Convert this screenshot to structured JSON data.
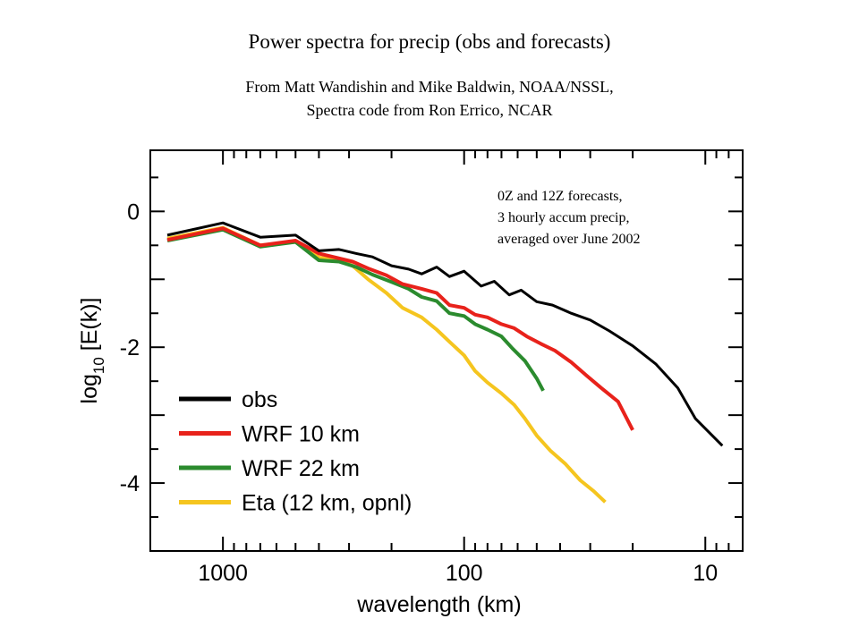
{
  "title": "Power spectra for precip (obs and forecasts)",
  "subtitle_lines": [
    "From Matt Wandishin and Mike Baldwin, NOAA/NSSL,",
    "Spectra code from Ron Errico, NCAR"
  ],
  "chart_data": {
    "type": "line",
    "xlabel": "wavelength (km)",
    "ylabel_main": "log",
    "ylabel_sub": "10",
    "ylabel_rest": " [E(k)]",
    "x_scale": "log",
    "x_reversed": true,
    "xlim": [
      2000,
      7
    ],
    "ylim": [
      -5,
      0.9
    ],
    "x_ticks": [
      1000,
      100,
      10
    ],
    "x_tick_labels": [
      "1000",
      "100",
      "10"
    ],
    "y_ticks": [
      0,
      -2,
      -4
    ],
    "y_tick_labels": [
      "0",
      "-2",
      "-4"
    ],
    "grid": false,
    "legend_position": "bottom-left",
    "annotation_lines": [
      "0Z and 12Z forecasts,",
      "3 hourly accum precip,",
      "averaged over June 2002"
    ],
    "series": [
      {
        "name": "obs",
        "color": "#000000",
        "points": [
          [
            1700,
            -0.35
          ],
          [
            1000,
            -0.17
          ],
          [
            700,
            -0.38
          ],
          [
            500,
            -0.35
          ],
          [
            400,
            -0.58
          ],
          [
            330,
            -0.56
          ],
          [
            280,
            -0.62
          ],
          [
            240,
            -0.67
          ],
          [
            200,
            -0.8
          ],
          [
            170,
            -0.85
          ],
          [
            150,
            -0.92
          ],
          [
            130,
            -0.82
          ],
          [
            115,
            -0.96
          ],
          [
            100,
            -0.88
          ],
          [
            85,
            -1.1
          ],
          [
            75,
            -1.03
          ],
          [
            65,
            -1.23
          ],
          [
            58,
            -1.16
          ],
          [
            50,
            -1.33
          ],
          [
            43,
            -1.38
          ],
          [
            36,
            -1.5
          ],
          [
            30,
            -1.6
          ],
          [
            25,
            -1.76
          ],
          [
            20,
            -1.98
          ],
          [
            16,
            -2.25
          ],
          [
            13,
            -2.6
          ],
          [
            11,
            -3.05
          ],
          [
            8.5,
            -3.45
          ]
        ]
      },
      {
        "name": "WRF 10 km",
        "color": "#e8221b",
        "points": [
          [
            1700,
            -0.42
          ],
          [
            1000,
            -0.25
          ],
          [
            700,
            -0.5
          ],
          [
            500,
            -0.43
          ],
          [
            400,
            -0.62
          ],
          [
            340,
            -0.68
          ],
          [
            290,
            -0.74
          ],
          [
            250,
            -0.84
          ],
          [
            210,
            -0.94
          ],
          [
            180,
            -1.07
          ],
          [
            150,
            -1.14
          ],
          [
            130,
            -1.2
          ],
          [
            115,
            -1.38
          ],
          [
            100,
            -1.42
          ],
          [
            90,
            -1.52
          ],
          [
            80,
            -1.56
          ],
          [
            70,
            -1.66
          ],
          [
            62,
            -1.72
          ],
          [
            55,
            -1.84
          ],
          [
            48,
            -1.95
          ],
          [
            42,
            -2.05
          ],
          [
            36,
            -2.22
          ],
          [
            31,
            -2.42
          ],
          [
            27,
            -2.6
          ],
          [
            23,
            -2.8
          ],
          [
            20,
            -3.22
          ]
        ]
      },
      {
        "name": "WRF 22 km",
        "color": "#2b8b2e",
        "points": [
          [
            1700,
            -0.43
          ],
          [
            1000,
            -0.27
          ],
          [
            700,
            -0.52
          ],
          [
            500,
            -0.45
          ],
          [
            400,
            -0.72
          ],
          [
            330,
            -0.74
          ],
          [
            280,
            -0.82
          ],
          [
            240,
            -0.93
          ],
          [
            200,
            -1.04
          ],
          [
            170,
            -1.14
          ],
          [
            150,
            -1.26
          ],
          [
            130,
            -1.32
          ],
          [
            115,
            -1.5
          ],
          [
            100,
            -1.54
          ],
          [
            90,
            -1.66
          ],
          [
            80,
            -1.74
          ],
          [
            70,
            -1.84
          ],
          [
            63,
            -2.02
          ],
          [
            56,
            -2.2
          ],
          [
            50,
            -2.46
          ],
          [
            47,
            -2.64
          ]
        ]
      },
      {
        "name": "Eta (12 km, opnl)",
        "color": "#f5c51f",
        "points": [
          [
            1700,
            -0.4
          ],
          [
            1000,
            -0.24
          ],
          [
            700,
            -0.5
          ],
          [
            500,
            -0.45
          ],
          [
            400,
            -0.68
          ],
          [
            330,
            -0.72
          ],
          [
            290,
            -0.8
          ],
          [
            250,
            -1.0
          ],
          [
            210,
            -1.2
          ],
          [
            180,
            -1.42
          ],
          [
            150,
            -1.56
          ],
          [
            130,
            -1.74
          ],
          [
            115,
            -1.92
          ],
          [
            100,
            -2.12
          ],
          [
            90,
            -2.35
          ],
          [
            80,
            -2.52
          ],
          [
            70,
            -2.68
          ],
          [
            62,
            -2.85
          ],
          [
            56,
            -3.05
          ],
          [
            50,
            -3.3
          ],
          [
            44,
            -3.52
          ],
          [
            38,
            -3.72
          ],
          [
            33,
            -3.96
          ],
          [
            29,
            -4.12
          ],
          [
            26,
            -4.28
          ]
        ]
      }
    ]
  }
}
